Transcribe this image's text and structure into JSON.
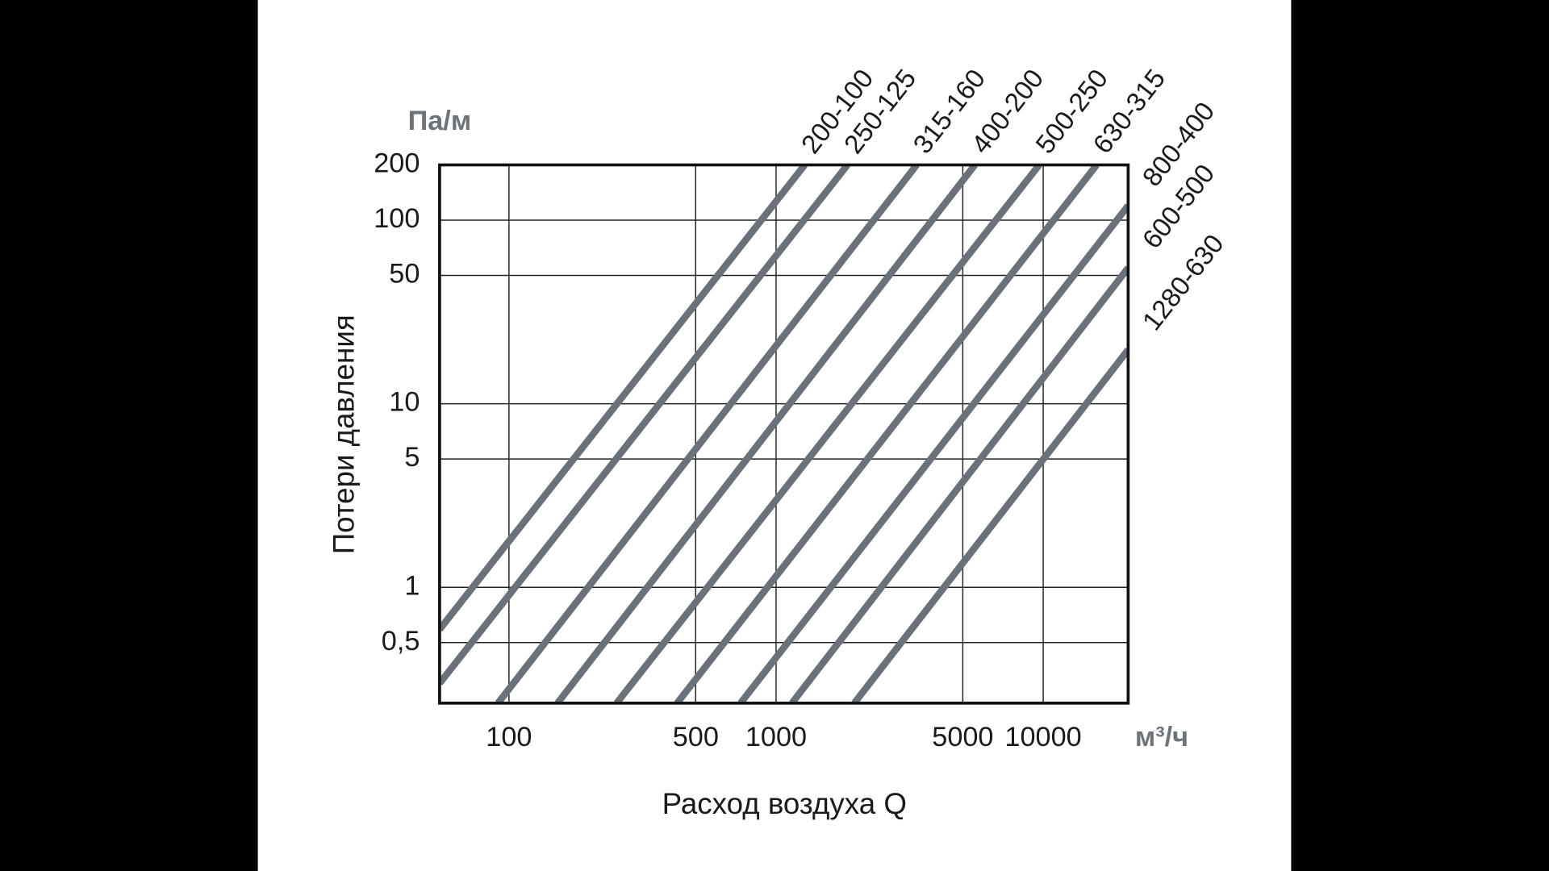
{
  "chart_data": {
    "type": "line",
    "x_label": "Расход воздуха Q",
    "y_label": "Потери давления",
    "x_unit": "м³/ч",
    "y_unit": "Па/м",
    "x_log": true,
    "y_log": true,
    "grid": true,
    "xlim": [
      55,
      20800
    ],
    "ylim": [
      0.234,
      200
    ],
    "xticks": [
      100,
      500,
      1000,
      5000,
      10000
    ],
    "yticks": [
      {
        "value": 0.5,
        "label": "0,5"
      },
      1,
      5,
      10,
      50,
      100,
      200
    ],
    "series": [
      {
        "name": "200-100",
        "color": "#6b7178",
        "x": [
          55,
          1280
        ],
        "values": [
          0.59,
          200
        ]
      },
      {
        "name": "250-125",
        "color": "#6b7178",
        "x": [
          55,
          1850
        ],
        "values": [
          0.3,
          200
        ]
      },
      {
        "name": "315-160",
        "color": "#6b7178",
        "x": [
          91,
          3360
        ],
        "values": [
          0.234,
          200
        ]
      },
      {
        "name": "400-200",
        "color": "#6b7178",
        "x": [
          152,
          5550
        ],
        "values": [
          0.234,
          200
        ]
      },
      {
        "name": "500-250",
        "color": "#6b7178",
        "x": [
          253,
          9660
        ],
        "values": [
          0.234,
          200
        ]
      },
      {
        "name": "630-315",
        "color": "#6b7178",
        "x": [
          426,
          15850
        ],
        "values": [
          0.234,
          200
        ]
      },
      {
        "name": "800-400",
        "color": "#6b7178",
        "x": [
          736,
          20800
        ],
        "values": [
          0.234,
          120
        ]
      },
      {
        "name": "600-500",
        "color": "#6b7178",
        "x": [
          1146,
          20800
        ],
        "values": [
          0.234,
          55
        ]
      },
      {
        "name": "1280-630",
        "color": "#6b7178",
        "x": [
          1962,
          20800
        ],
        "values": [
          0.234,
          19.7
        ]
      }
    ]
  }
}
